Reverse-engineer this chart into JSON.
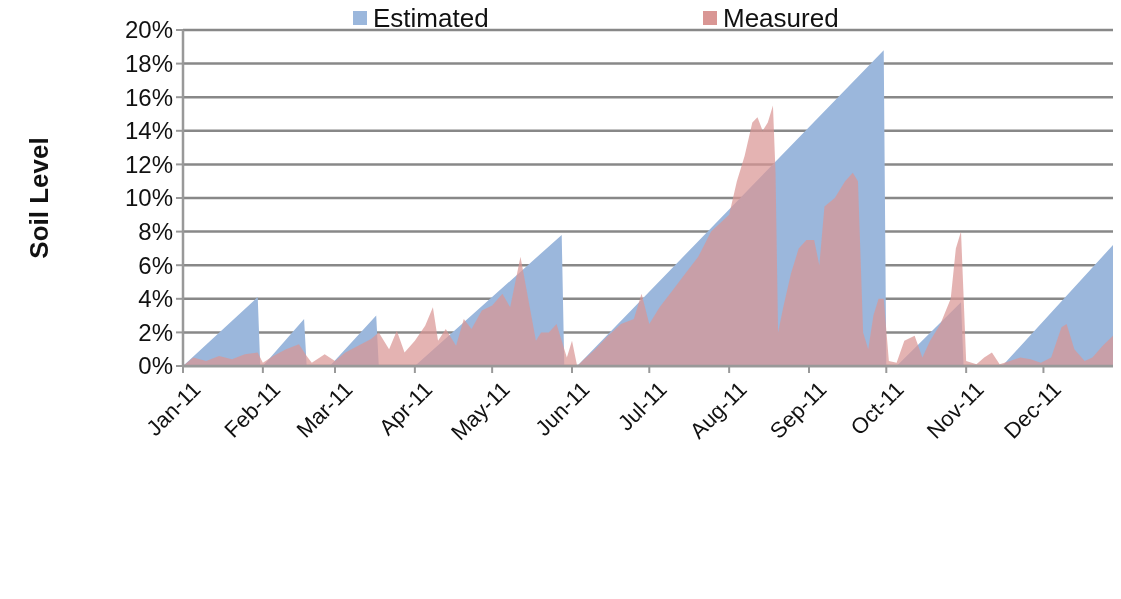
{
  "chart_data": {
    "type": "area",
    "ylabel": "Soil Level",
    "legend": "top",
    "grid": "y",
    "xlim": [
      "2011-01-01",
      "2011-12-28"
    ],
    "xticks": [
      {
        "value": "2011-01-01",
        "label": "Jan-11"
      },
      {
        "value": "2011-02-01",
        "label": "Feb-11"
      },
      {
        "value": "2011-03-01",
        "label": "Mar-11"
      },
      {
        "value": "2011-04-01",
        "label": "Apr-11"
      },
      {
        "value": "2011-05-01",
        "label": "May-11"
      },
      {
        "value": "2011-06-01",
        "label": "Jun-11"
      },
      {
        "value": "2011-07-01",
        "label": "Jul-11"
      },
      {
        "value": "2011-08-01",
        "label": "Aug-11"
      },
      {
        "value": "2011-09-01",
        "label": "Sep-11"
      },
      {
        "value": "2011-10-01",
        "label": "Oct-11"
      },
      {
        "value": "2011-11-01",
        "label": "Nov-11"
      },
      {
        "value": "2011-12-01",
        "label": "Dec-11"
      }
    ],
    "ylim": [
      0,
      20
    ],
    "yticks": [
      {
        "value": 0,
        "label": "0%"
      },
      {
        "value": 2,
        "label": "2%"
      },
      {
        "value": 4,
        "label": "4%"
      },
      {
        "value": 6,
        "label": "6%"
      },
      {
        "value": 8,
        "label": "8%"
      },
      {
        "value": 10,
        "label": "10%"
      },
      {
        "value": 12,
        "label": "12%"
      },
      {
        "value": 14,
        "label": "14%"
      },
      {
        "value": 16,
        "label": "16%"
      },
      {
        "value": 18,
        "label": "18%"
      },
      {
        "value": 20,
        "label": "20%"
      }
    ],
    "series": [
      {
        "name": "Estimated",
        "color": "#9bb7dc",
        "x": [
          "2011-01-01",
          "2011-01-30",
          "2011-01-31",
          "2011-02-01",
          "2011-02-17",
          "2011-02-18",
          "2011-02-27",
          "2011-03-17",
          "2011-03-18",
          "2011-04-01",
          "2011-05-28",
          "2011-05-29",
          "2011-06-03",
          "2011-09-30",
          "2011-10-01",
          "2011-10-05",
          "2011-10-30",
          "2011-10-31",
          "2011-11-15",
          "2011-12-28"
        ],
        "values": [
          0,
          4.1,
          0,
          0,
          2.8,
          0,
          0,
          3,
          0,
          0,
          7.8,
          0,
          0,
          18.8,
          0,
          0,
          3.8,
          0,
          0,
          7.2
        ]
      },
      {
        "name": "Measured",
        "color": "#d99694",
        "x": [
          "2011-01-01",
          "2011-01-05",
          "2011-01-10",
          "2011-01-15",
          "2011-01-20",
          "2011-01-25",
          "2011-01-30",
          "2011-02-01",
          "2011-02-05",
          "2011-02-10",
          "2011-02-15",
          "2011-02-18",
          "2011-02-20",
          "2011-02-25",
          "2011-03-01",
          "2011-03-05",
          "2011-03-10",
          "2011-03-15",
          "2011-03-18",
          "2011-03-22",
          "2011-03-25",
          "2011-03-28",
          "2011-04-01",
          "2011-04-05",
          "2011-04-08",
          "2011-04-10",
          "2011-04-13",
          "2011-04-17",
          "2011-04-20",
          "2011-04-23",
          "2011-04-27",
          "2011-05-01",
          "2011-05-05",
          "2011-05-08",
          "2011-05-12",
          "2011-05-15",
          "2011-05-18",
          "2011-05-20",
          "2011-05-23",
          "2011-05-26",
          "2011-05-30",
          "2011-06-01",
          "2011-06-03",
          "2011-06-05",
          "2011-06-10",
          "2011-06-15",
          "2011-06-20",
          "2011-06-25",
          "2011-06-28",
          "2011-07-01",
          "2011-07-05",
          "2011-07-10",
          "2011-07-15",
          "2011-07-20",
          "2011-07-25",
          "2011-08-01",
          "2011-08-04",
          "2011-08-07",
          "2011-08-10",
          "2011-08-12",
          "2011-08-14",
          "2011-08-16",
          "2011-08-18",
          "2011-08-19",
          "2011-08-20",
          "2011-08-22",
          "2011-08-25",
          "2011-08-28",
          "2011-08-31",
          "2011-09-03",
          "2011-09-05",
          "2011-09-07",
          "2011-09-11",
          "2011-09-15",
          "2011-09-18",
          "2011-09-20",
          "2011-09-22",
          "2011-09-24",
          "2011-09-26",
          "2011-09-28",
          "2011-09-30",
          "2011-10-02",
          "2011-10-05",
          "2011-10-08",
          "2011-10-12",
          "2011-10-15",
          "2011-10-18",
          "2011-10-22",
          "2011-10-26",
          "2011-10-28",
          "2011-10-30",
          "2011-11-01",
          "2011-11-05",
          "2011-11-08",
          "2011-11-11",
          "2011-11-14",
          "2011-11-18",
          "2011-11-22",
          "2011-11-26",
          "2011-11-30",
          "2011-12-04",
          "2011-12-08",
          "2011-12-10",
          "2011-12-13",
          "2011-12-17",
          "2011-12-20",
          "2011-12-24",
          "2011-12-28"
        ],
        "values": [
          0,
          0.5,
          0.3,
          0.6,
          0.4,
          0.7,
          0.8,
          0.2,
          0.6,
          1.0,
          1.3,
          0.6,
          0.2,
          0.7,
          0.3,
          0.8,
          1.2,
          1.6,
          2.0,
          1.0,
          2.1,
          0.8,
          1.5,
          2.4,
          3.5,
          1.5,
          2.2,
          1.2,
          2.8,
          2.2,
          3.3,
          3.6,
          4.3,
          3.5,
          6.5,
          4.0,
          1.5,
          2.0,
          2.0,
          2.5,
          0.5,
          1.5,
          0,
          0.3,
          1.0,
          1.8,
          2.5,
          2.8,
          4.3,
          2.5,
          3.5,
          4.5,
          5.5,
          6.5,
          8.0,
          9.0,
          11.0,
          12.5,
          14.5,
          14.8,
          14.0,
          14.5,
          15.5,
          11.5,
          2.0,
          3.5,
          5.5,
          7.0,
          7.5,
          7.5,
          6.0,
          9.5,
          10.0,
          11.0,
          11.5,
          11.0,
          2.0,
          1.0,
          3.0,
          4.0,
          4.0,
          0.3,
          0.2,
          1.5,
          1.8,
          0.5,
          1.5,
          2.5,
          4.0,
          7.0,
          8.0,
          0.3,
          0.1,
          0.5,
          0.8,
          0.1,
          0.3,
          0.5,
          0.4,
          0.2,
          0.5,
          2.3,
          2.5,
          1.0,
          0.3,
          0.5,
          1.2,
          1.8
        ]
      }
    ]
  }
}
